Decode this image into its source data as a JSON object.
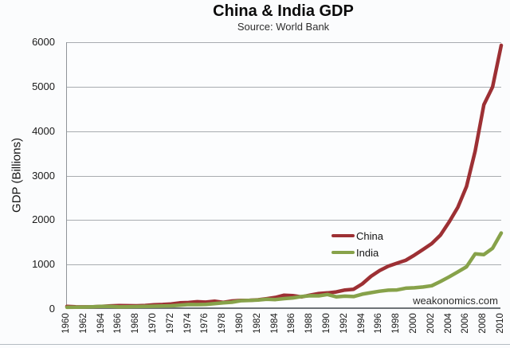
{
  "figure": {
    "title": "China & India GDP",
    "subtitle": "Source: World Bank",
    "watermark": "weakonomics.com"
  },
  "chart_data": {
    "type": "line",
    "title": "China & India GDP",
    "subtitle": "Source: World Bank",
    "xlabel": "",
    "ylabel": "GDP (Billions)",
    "ylim": [
      0,
      6000
    ],
    "xlim": [
      1960,
      2010
    ],
    "yticks": [
      0,
      1000,
      2000,
      3000,
      4000,
      5000,
      6000
    ],
    "xtick_labels": [
      "1960",
      "1962",
      "1964",
      "1966",
      "1968",
      "1970",
      "1972",
      "1974",
      "1976",
      "1978",
      "1980",
      "1982",
      "1984",
      "1986",
      "1988",
      "1990",
      "1992",
      "1994",
      "1996",
      "1998",
      "2000",
      "2002",
      "2004",
      "2006",
      "2008",
      "2010"
    ],
    "grid": "horizontal",
    "legend_position": "center-right",
    "x": [
      1960,
      1961,
      1962,
      1963,
      1964,
      1965,
      1966,
      1967,
      1968,
      1969,
      1970,
      1971,
      1972,
      1973,
      1974,
      1975,
      1976,
      1977,
      1978,
      1979,
      1980,
      1981,
      1982,
      1983,
      1984,
      1985,
      1986,
      1987,
      1988,
      1989,
      1990,
      1991,
      1992,
      1993,
      1994,
      1995,
      1996,
      1997,
      1998,
      1999,
      2000,
      2001,
      2002,
      2003,
      2004,
      2005,
      2006,
      2007,
      2008,
      2009,
      2010
    ],
    "series": [
      {
        "name": "China",
        "color": "#9D3034",
        "values": [
          59.7,
          50.1,
          47.2,
          50.7,
          59.7,
          70.4,
          76.7,
          72.9,
          70.8,
          79.7,
          92.6,
          99.8,
          113.7,
          138.5,
          144.2,
          163.4,
          153.9,
          174.9,
          149.5,
          178.3,
          191.1,
          195.9,
          205.1,
          230.7,
          259.9,
          309.5,
          300.8,
          273.0,
          312.3,
          347.8,
          360.9,
          383.4,
          426.9,
          444.7,
          564.3,
          734.5,
          863.7,
          961.6,
          1029.0,
          1094.0,
          1211.3,
          1339.4,
          1470.6,
          1660.3,
          1955.3,
          2286.0,
          2752.1,
          3552.2,
          4594.3,
          4991.3,
          5930.5
        ]
      },
      {
        "name": "India",
        "color": "#87A24A",
        "values": [
          37.0,
          39.2,
          42.2,
          48.4,
          56.5,
          59.6,
          45.9,
          50.1,
          53.1,
          58.4,
          62.4,
          67.4,
          71.5,
          85.5,
          99.5,
          98.5,
          102.7,
          121.5,
          137.3,
          152.0,
          186.3,
          193.5,
          200.7,
          218.3,
          212.2,
          232.5,
          248.2,
          279.0,
          296.6,
          296.0,
          326.6,
          274.8,
          288.2,
          279.3,
          333.0,
          366.6,
          399.8,
          423.2,
          428.8,
          466.9,
          476.6,
          493.9,
          523.8,
          618.4,
          721.6,
          834.2,
          949.1,
          1238.7,
          1224.1,
          1365.4,
          1708.5
        ]
      }
    ],
    "colors": {
      "grid": "#A8ACB0",
      "axis": "#6E7377",
      "background": "#FBFCFD",
      "text": "#1A1A1A"
    }
  }
}
